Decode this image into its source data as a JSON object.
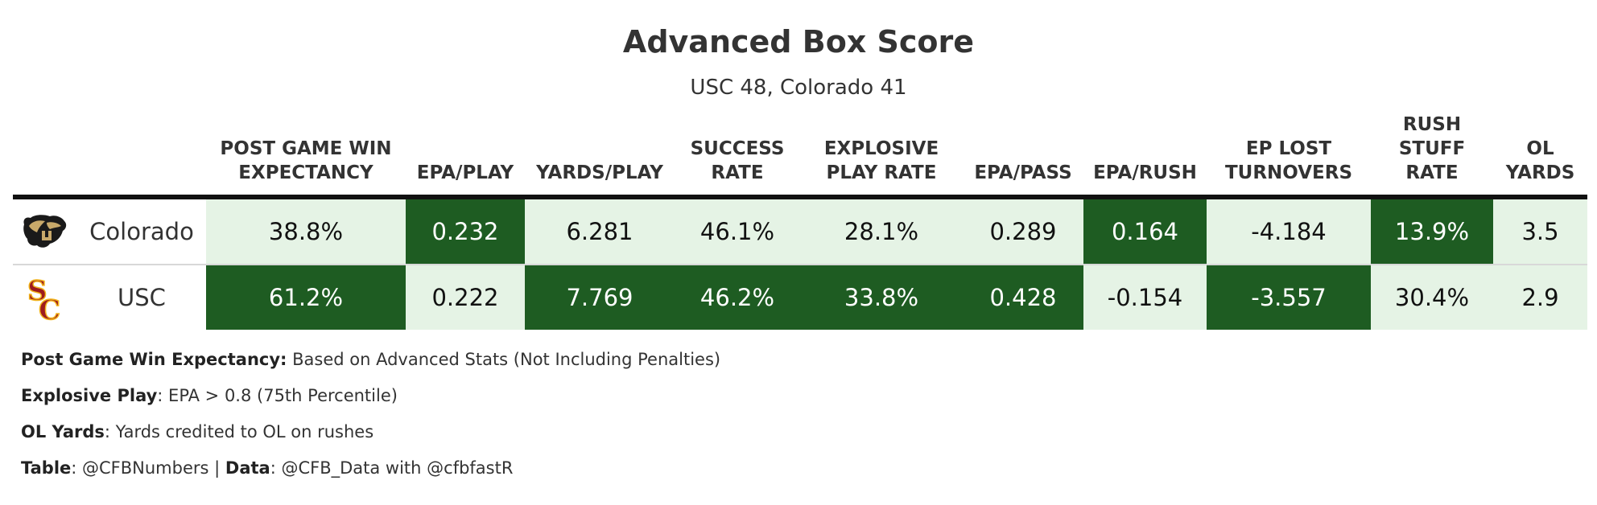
{
  "title": "Advanced Box Score",
  "subtitle": "USC 48, Colorado 41",
  "colors": {
    "dark": "#1e5c22",
    "light": "#e5f3e5",
    "dark_text": "#ffffff",
    "light_text": "#111111",
    "header_rule": "#111111"
  },
  "chart_data": {
    "type": "table",
    "columns": [
      "POST GAME WIN\nEXPECTANCY",
      "EPA/PLAY",
      "YARDS/PLAY",
      "SUCCESS\nRATE",
      "EXPLOSIVE\nPLAY RATE",
      "EPA/PASS",
      "EPA/RUSH",
      "EP LOST\nTURNOVERS",
      "RUSH\nSTUFF\nRATE",
      "OL\nYARDS"
    ],
    "rows": [
      {
        "team": "Colorado",
        "logo": "colorado-buffalo-logo",
        "values": [
          "38.8%",
          "0.232",
          "6.281",
          "46.1%",
          "28.1%",
          "0.289",
          "0.164",
          "-4.184",
          "13.9%",
          "3.5"
        ],
        "shading": [
          "light",
          "dark",
          "light",
          "light",
          "light",
          "light",
          "dark",
          "light",
          "dark",
          "light"
        ]
      },
      {
        "team": "USC",
        "logo": "usc-sc-logo",
        "values": [
          "61.2%",
          "0.222",
          "7.769",
          "46.2%",
          "33.8%",
          "0.428",
          "-0.154",
          "-3.557",
          "30.4%",
          "2.9"
        ],
        "shading": [
          "dark",
          "light",
          "dark",
          "dark",
          "dark",
          "dark",
          "light",
          "dark",
          "light",
          "light"
        ]
      }
    ]
  },
  "notes": [
    {
      "label": "Post Game Win Expectancy:",
      "text": " Based on Advanced Stats (Not Including Penalties)"
    },
    {
      "label": "Explosive Play",
      "text": ": EPA > 0.8 (75th Percentile)"
    },
    {
      "label": "OL Yards",
      "text": ": Yards credited to OL on rushes"
    }
  ],
  "credits": {
    "table_label": "Table",
    "table_text": ": @CFBNumbers | ",
    "data_label": "Data",
    "data_text": ": @CFB_Data with @cfbfastR"
  }
}
